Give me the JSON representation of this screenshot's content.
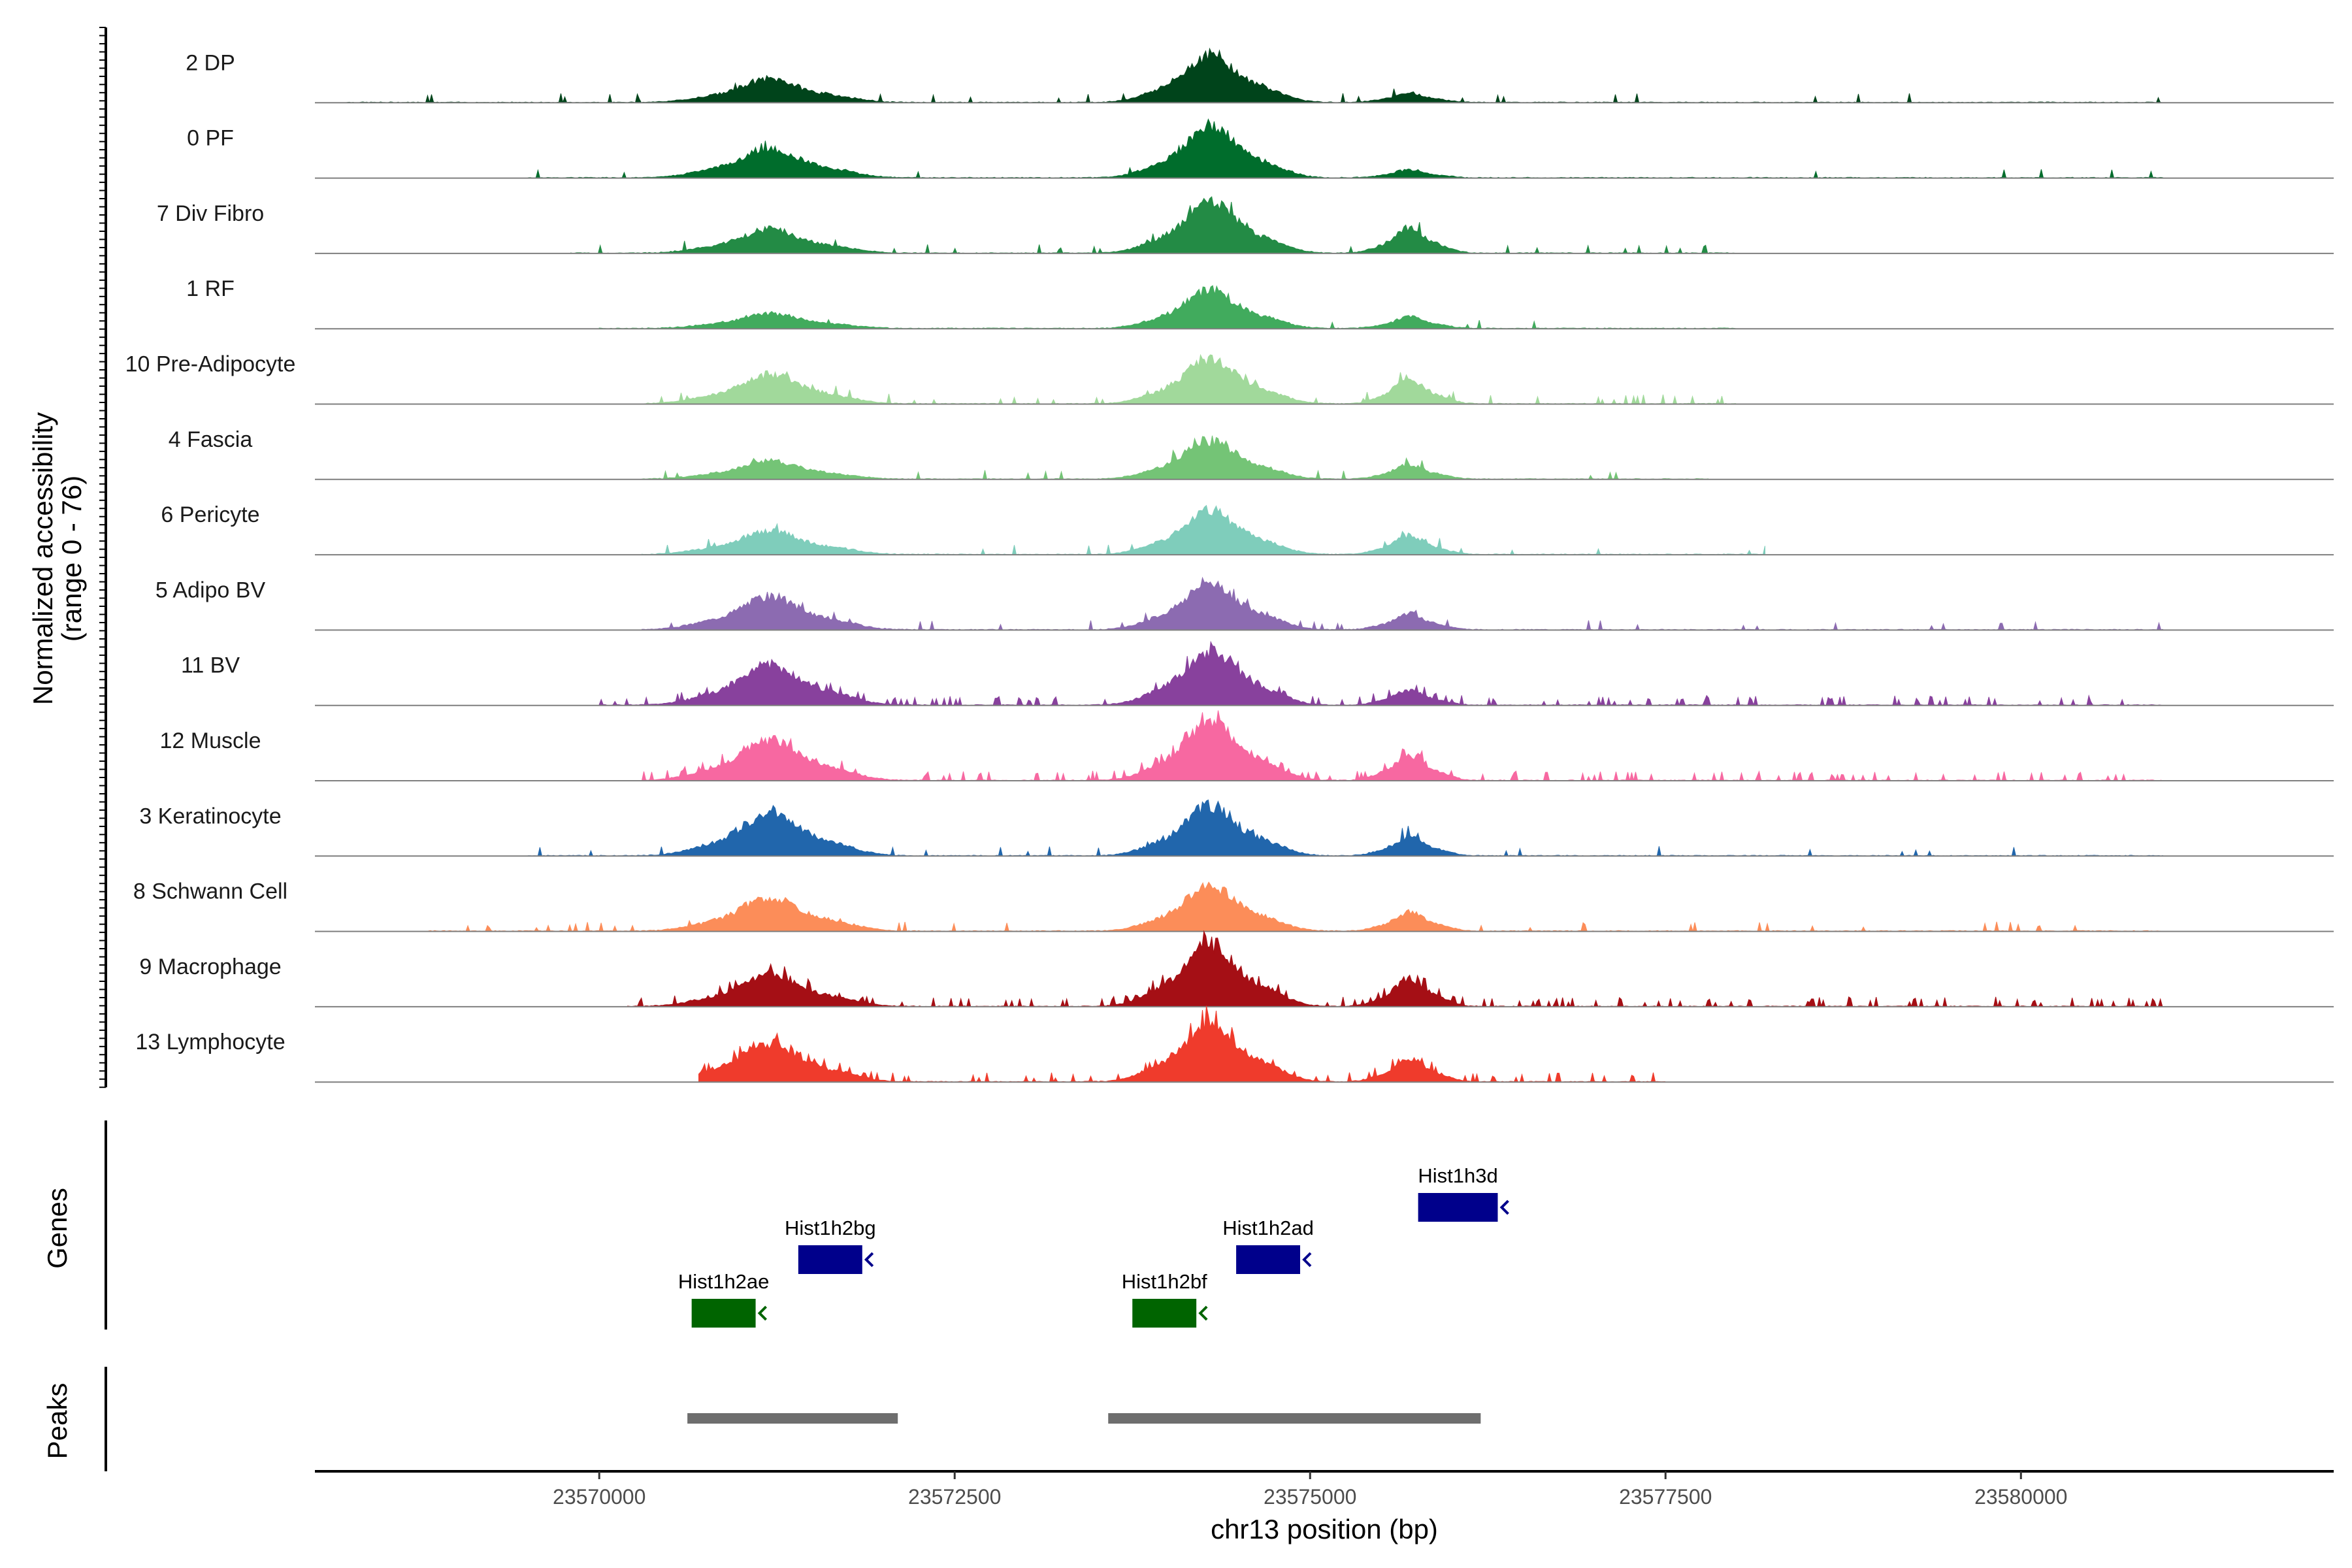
{
  "chart_data": {
    "type": "area",
    "region": "chr13",
    "xlim": [
      23568000,
      23582200
    ],
    "x_ticks": [
      23570000,
      23572500,
      23575000,
      23577500,
      23580000
    ],
    "x_tick_labels": [
      "23570000",
      "23572500",
      "23575000",
      "23577500",
      "23580000"
    ],
    "xlabel": "chr13 position (bp)",
    "ylabel": [
      "Normalized accessibility",
      "(range 0 - 76)"
    ],
    "y_range": [
      0,
      76
    ],
    "peaks_center_x": [
      23571200,
      23574300,
      23575700
    ],
    "tracks": [
      {
        "name": "2 DP",
        "color": "#00441b",
        "heights": [
          0.32,
          0.65,
          0.13
        ],
        "noise": 0.02,
        "extent": [
          23568200,
          23581000
        ]
      },
      {
        "name": "0 PF",
        "color": "#006d2c",
        "heights": [
          0.4,
          0.7,
          0.11
        ],
        "noise": 0.02,
        "extent": [
          23569500,
          23581000
        ]
      },
      {
        "name": "7 Div Fibro",
        "color": "#238b45",
        "heights": [
          0.32,
          0.7,
          0.35
        ],
        "noise": 0.05,
        "extent": [
          23569800,
          23578000
        ]
      },
      {
        "name": "1 RF",
        "color": "#41ab5d",
        "heights": [
          0.2,
          0.52,
          0.16
        ],
        "noise": 0.02,
        "extent": [
          23570000,
          23578000
        ]
      },
      {
        "name": "10 Pre-Adipocyte",
        "color": "#a1d99b",
        "heights": [
          0.4,
          0.62,
          0.34
        ],
        "noise": 0.08,
        "extent": [
          23570300,
          23578000
        ]
      },
      {
        "name": "4 Fascia",
        "color": "#74c476",
        "heights": [
          0.25,
          0.53,
          0.2
        ],
        "noise": 0.03,
        "extent": [
          23570300,
          23577800
        ]
      },
      {
        "name": "6 Pericyte",
        "color": "#7fcdbb",
        "heights": [
          0.32,
          0.6,
          0.26
        ],
        "noise": 0.04,
        "extent": [
          23570300,
          23578200
        ]
      },
      {
        "name": "5 Adipo BV",
        "color": "#8c6bb1",
        "heights": [
          0.45,
          0.65,
          0.22
        ],
        "noise": 0.03,
        "extent": [
          23570300,
          23581000
        ]
      },
      {
        "name": "11 BV",
        "color": "#88419d",
        "heights": [
          0.55,
          0.75,
          0.2
        ],
        "noise": 0.12,
        "extent": [
          23570000,
          23581000
        ]
      },
      {
        "name": "12 Muscle",
        "color": "#f768a1",
        "heights": [
          0.55,
          0.8,
          0.35
        ],
        "noise": 0.14,
        "extent": [
          23570300,
          23581000
        ]
      },
      {
        "name": "3 Keratinocyte",
        "color": "#2166ac",
        "heights": [
          0.58,
          0.68,
          0.25
        ],
        "noise": 0.03,
        "extent": [
          23569500,
          23581000
        ]
      },
      {
        "name": "8 Schwann Cell",
        "color": "#fc8d59",
        "heights": [
          0.46,
          0.62,
          0.26
        ],
        "noise": 0.04,
        "extent": [
          23568800,
          23581000
        ]
      },
      {
        "name": "9 Macrophage",
        "color": "#a50f15",
        "heights": [
          0.45,
          0.85,
          0.38
        ],
        "noise": 0.12,
        "extent": [
          23570200,
          23581000
        ]
      },
      {
        "name": "13 Lymphocyte",
        "color": "#ef3b2c",
        "heights": [
          0.52,
          0.82,
          0.32
        ],
        "noise": 0.14,
        "extent": [
          23570700,
          23577500
        ]
      }
    ],
    "genes_track_label": "Genes",
    "genes": [
      {
        "name": "Hist1h2ae",
        "start": 23570650,
        "end": 23571100,
        "row": 0,
        "color": "#006400"
      },
      {
        "name": "Hist1h2bg",
        "start": 23571400,
        "end": 23571850,
        "row": 1,
        "color": "#00008b"
      },
      {
        "name": "Hist1h2bf",
        "start": 23573750,
        "end": 23574200,
        "row": 0,
        "color": "#006400"
      },
      {
        "name": "Hist1h2ad",
        "start": 23574480,
        "end": 23574930,
        "row": 1,
        "color": "#00008b"
      },
      {
        "name": "Hist1h3d",
        "start": 23575760,
        "end": 23576320,
        "row": 2,
        "color": "#00008b"
      }
    ],
    "peaks_track_label": "Peaks",
    "peaks": [
      {
        "start": 23570620,
        "end": 23572100
      },
      {
        "start": 23573580,
        "end": 23576200
      }
    ],
    "peak_color": "#6e6e6e"
  }
}
